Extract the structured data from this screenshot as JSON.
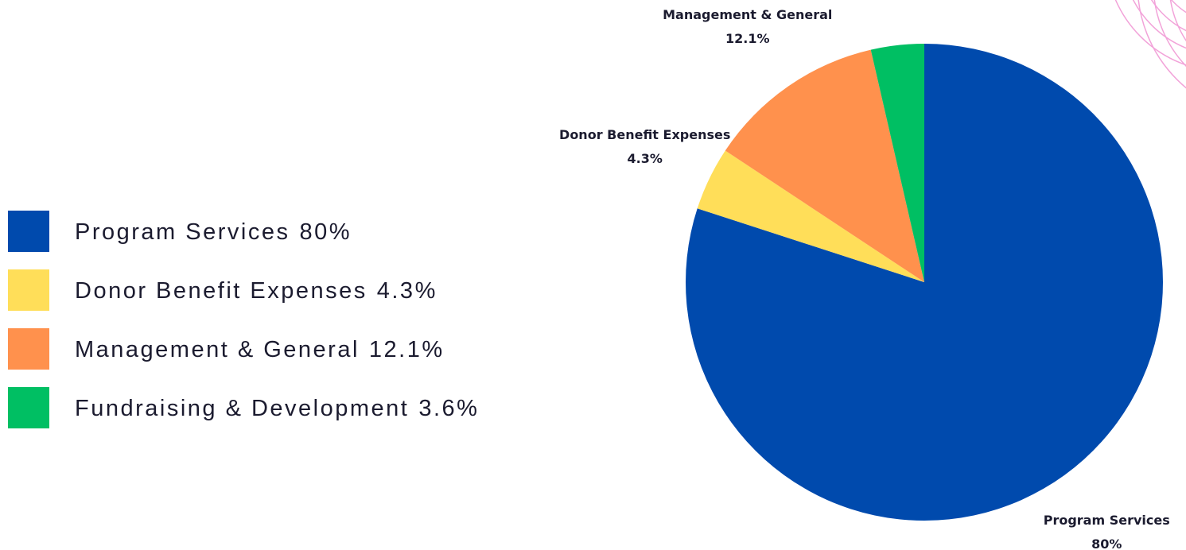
{
  "chart_data": {
    "type": "pie",
    "categories": [
      "Program Services",
      "Donor Benefit Expenses",
      "Management & General",
      "Fundraising & Development"
    ],
    "values": [
      80,
      4.3,
      12.1,
      3.6
    ],
    "value_labels": [
      "80%",
      "4.3%",
      "12.1%",
      "3.6%"
    ],
    "colors": [
      "#004aad",
      "#ffde59",
      "#ff914d",
      "#00bf63"
    ],
    "legend": "left"
  }
}
